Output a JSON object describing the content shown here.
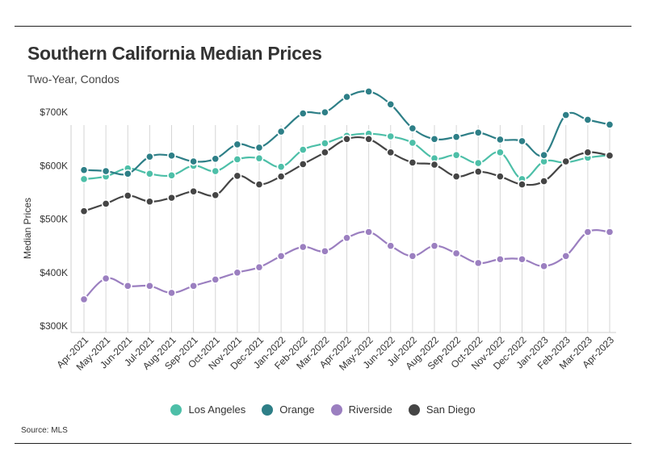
{
  "header": {
    "title": "Southern California Median Prices",
    "subtitle": "Two-Year, Condos"
  },
  "footer": {
    "source": "Source:  MLS"
  },
  "chart_data": {
    "type": "line",
    "title": "Southern California Median Prices",
    "subtitle": "Two-Year, Condos",
    "xlabel": "",
    "ylabel": "Median Prices",
    "ylim": [
      300000,
      700000
    ],
    "y_ticks": [
      300000,
      400000,
      500000,
      600000,
      700000
    ],
    "y_tick_labels": [
      "$300K",
      "$400K",
      "$500K",
      "$600K",
      "$700K"
    ],
    "grid": "vertical",
    "legend_position": "bottom",
    "categories": [
      "Apr-2021",
      "May-2021",
      "Jun-2021",
      "Jul-2021",
      "Aug-2021",
      "Sep-2021",
      "Oct-2021",
      "Nov-2021",
      "Dec-2021",
      "Jan-2022",
      "Feb-2022",
      "Mar-2022",
      "Apr-2022",
      "May-2022",
      "Jun-2022",
      "Jul-2022",
      "Aug-2022",
      "Sep-2022",
      "Oct-2022",
      "Nov-2022",
      "Dec-2022",
      "Jan-2023",
      "Feb-2023",
      "Mar-2023",
      "Apr-2023"
    ],
    "series": [
      {
        "name": "Los Angeles",
        "color": "#4dbfa8",
        "values": [
          575000,
          580000,
          595000,
          585000,
          582000,
          600000,
          590000,
          612000,
          614000,
          598000,
          630000,
          642000,
          656000,
          660000,
          655000,
          643000,
          614000,
          620000,
          605000,
          625000,
          575000,
          608000,
          606000,
          615000,
          620000
        ]
      },
      {
        "name": "Orange",
        "color": "#2e7f87",
        "values": [
          592000,
          590000,
          585000,
          617000,
          619000,
          608000,
          613000,
          640000,
          634000,
          664000,
          698000,
          700000,
          729000,
          739000,
          715000,
          670000,
          650000,
          654000,
          662000,
          649000,
          646000,
          620000,
          695000,
          686000,
          677000
        ]
      },
      {
        "name": "Riverside",
        "color": "#9b7fc0",
        "values": [
          350000,
          389000,
          375000,
          375000,
          362000,
          375000,
          387000,
          400000,
          410000,
          431000,
          448000,
          440000,
          465000,
          476000,
          450000,
          431000,
          450000,
          436000,
          418000,
          425000,
          425000,
          412000,
          431000,
          476000,
          476000
        ]
      },
      {
        "name": "San Diego",
        "color": "#454545",
        "values": [
          515000,
          529000,
          544000,
          533000,
          540000,
          552000,
          545000,
          581000,
          565000,
          580000,
          603000,
          625000,
          650000,
          650000,
          625000,
          606000,
          602000,
          580000,
          589000,
          580000,
          565000,
          571000,
          608000,
          625000,
          619000
        ]
      }
    ]
  }
}
